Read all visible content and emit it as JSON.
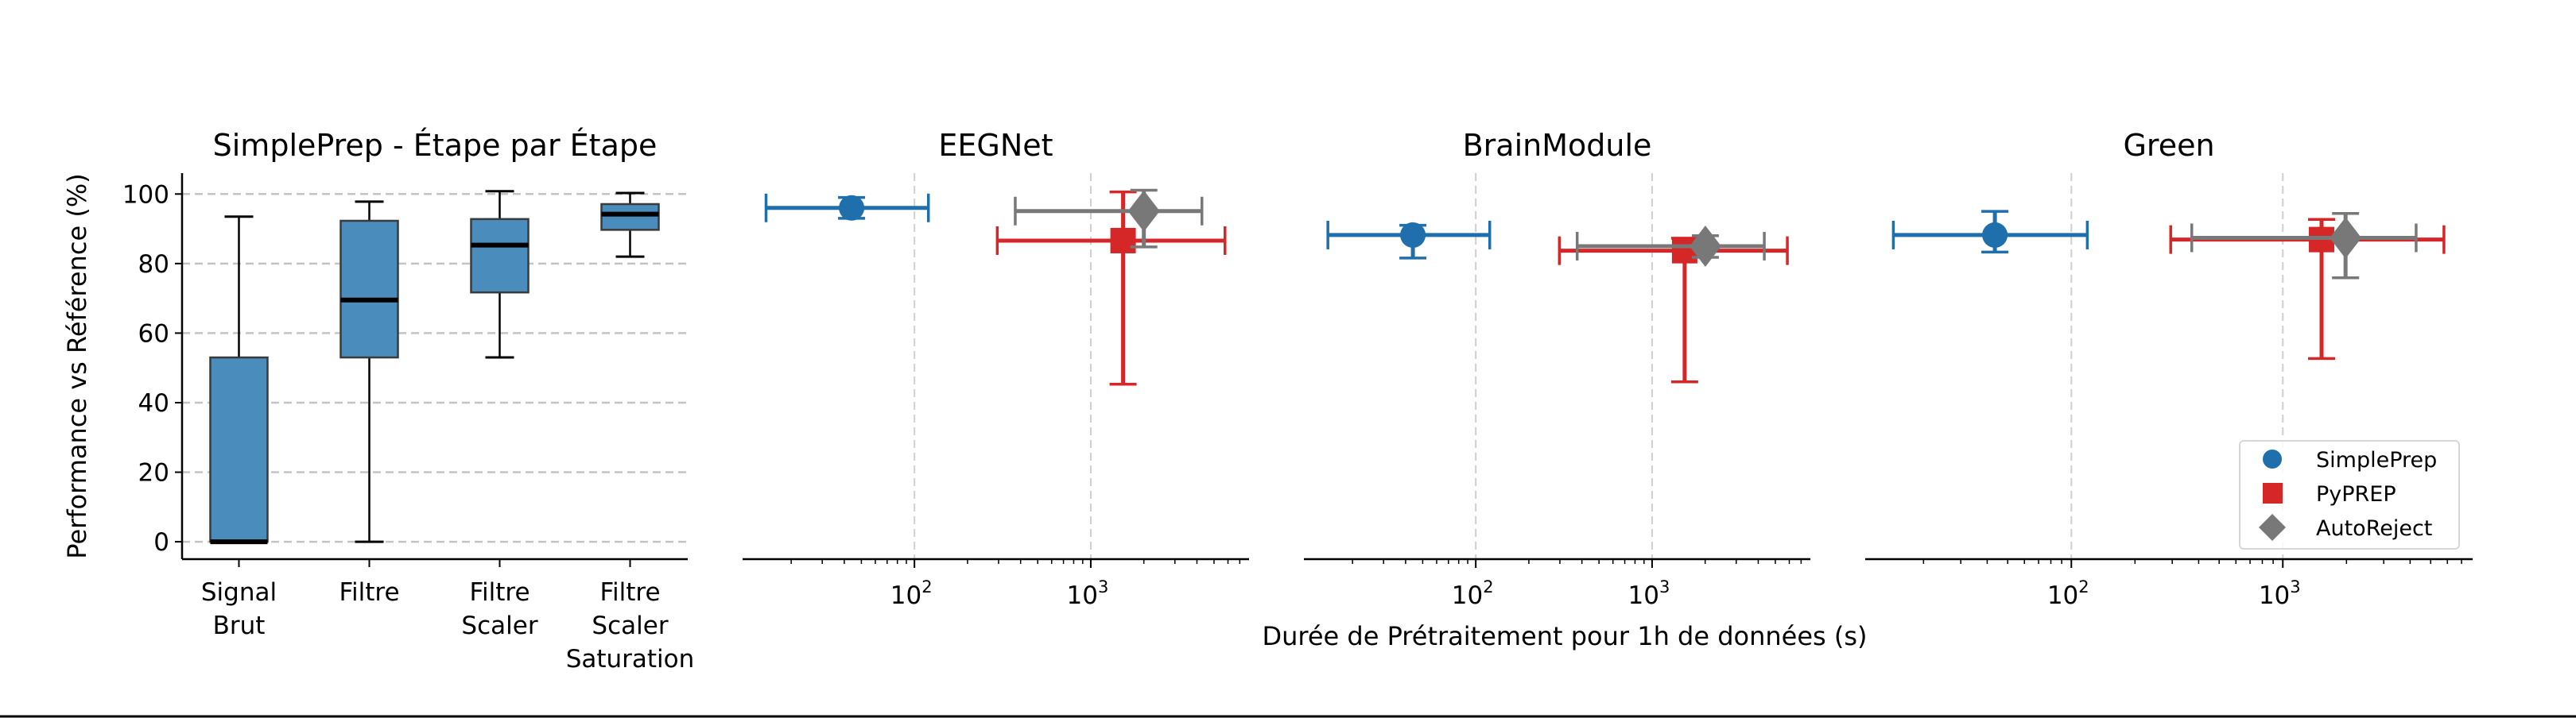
{
  "chart_data": [
    {
      "type": "box",
      "title": "SimplePrep - Étape par Étape",
      "ylabel": "Performance vs Référence (%)",
      "ylim": [
        -5,
        106
      ],
      "yticks": [
        0,
        20,
        40,
        60,
        80,
        100
      ],
      "grid": "y dashed",
      "color": "#4a8cbc",
      "categories": [
        [
          "Signal",
          "Brut"
        ],
        [
          "Filtre"
        ],
        [
          "Filtre",
          "Scaler"
        ],
        [
          "Filtre",
          "Scaler",
          "Saturation"
        ]
      ],
      "boxes": [
        {
          "whisker_low": 0,
          "q1": 0,
          "median": 0,
          "q3": 53,
          "whisker_high": 93.5
        },
        {
          "whisker_low": 0,
          "q1": 53,
          "median": 69.5,
          "q3": 92.3,
          "whisker_high": 97.8
        },
        {
          "whisker_low": 53,
          "q1": 71.7,
          "median": 85.3,
          "q3": 92.8,
          "whisker_high": 100.8
        },
        {
          "whisker_low": 82,
          "q1": 89.7,
          "median": 94.2,
          "q3": 97.1,
          "whisker_high": 100.3
        }
      ]
    },
    {
      "type": "scatter",
      "title": "EEGNet",
      "xscale": "log",
      "xlim": [
        10.6,
        7900
      ],
      "xticks": [
        {
          "base": "10",
          "exp": "2",
          "value": 100
        },
        {
          "base": "10",
          "exp": "3",
          "value": 1000
        }
      ],
      "grid": "x dashed",
      "points": [
        {
          "series": "SimplePrep",
          "x": 44,
          "x_range": [
            14.4,
            120
          ],
          "y": 96,
          "y_range": [
            93,
            99
          ]
        },
        {
          "series": "PyPREP",
          "x": 1525,
          "x_range": [
            295,
            5770
          ],
          "y": 86.6,
          "y_range": [
            45.3,
            100.6
          ]
        },
        {
          "series": "AutoReject",
          "x": 2000,
          "x_range": [
            373,
            4270
          ],
          "y": 95.1,
          "y_range": [
            84.8,
            101.1
          ]
        }
      ]
    },
    {
      "type": "scatter",
      "title": "BrainModule",
      "xscale": "log",
      "xlim": [
        10.6,
        7900
      ],
      "xticks": [
        {
          "base": "10",
          "exp": "2",
          "value": 100
        },
        {
          "base": "10",
          "exp": "3",
          "value": 1000
        }
      ],
      "grid": "x dashed",
      "points": [
        {
          "series": "SimplePrep",
          "x": 44,
          "x_range": [
            14.5,
            120
          ],
          "y": 88.2,
          "y_range": [
            81.6,
            91
          ]
        },
        {
          "series": "PyPREP",
          "x": 1530,
          "x_range": [
            298,
            5850
          ],
          "y": 83.7,
          "y_range": [
            46,
            87.3
          ]
        },
        {
          "series": "AutoReject",
          "x": 2005,
          "x_range": [
            376,
            4330
          ],
          "y": 85,
          "y_range": [
            81.8,
            88
          ]
        }
      ]
    },
    {
      "type": "scatter",
      "title": "Green",
      "xscale": "log",
      "xlim": [
        10.6,
        7900
      ],
      "xticks": [
        {
          "base": "10",
          "exp": "2",
          "value": 100
        },
        {
          "base": "10",
          "exp": "3",
          "value": 1000
        }
      ],
      "grid": "x dashed",
      "legend": "lower-right",
      "points": [
        {
          "series": "SimplePrep",
          "x": 43.5,
          "x_range": [
            14.4,
            119
          ],
          "y": 88.2,
          "y_range": [
            83.3,
            95
          ]
        },
        {
          "series": "PyPREP",
          "x": 1525,
          "x_range": [
            295,
            5780
          ],
          "y": 86.9,
          "y_range": [
            52.7,
            92.7
          ]
        },
        {
          "series": "AutoReject",
          "x": 1980,
          "x_range": [
            371,
            4270
          ],
          "y": 87.4,
          "y_range": [
            75.9,
            94.4
          ]
        }
      ]
    }
  ],
  "shared_xlabel": "Durée de Prétraitement pour 1h de données (s)",
  "series": [
    {
      "name": "SimplePrep",
      "color": "#1f6fad",
      "marker": "circle"
    },
    {
      "name": "PyPREP",
      "color": "#d62728",
      "marker": "square"
    },
    {
      "name": "AutoReject",
      "color": "#787878",
      "marker": "diamond"
    }
  ]
}
